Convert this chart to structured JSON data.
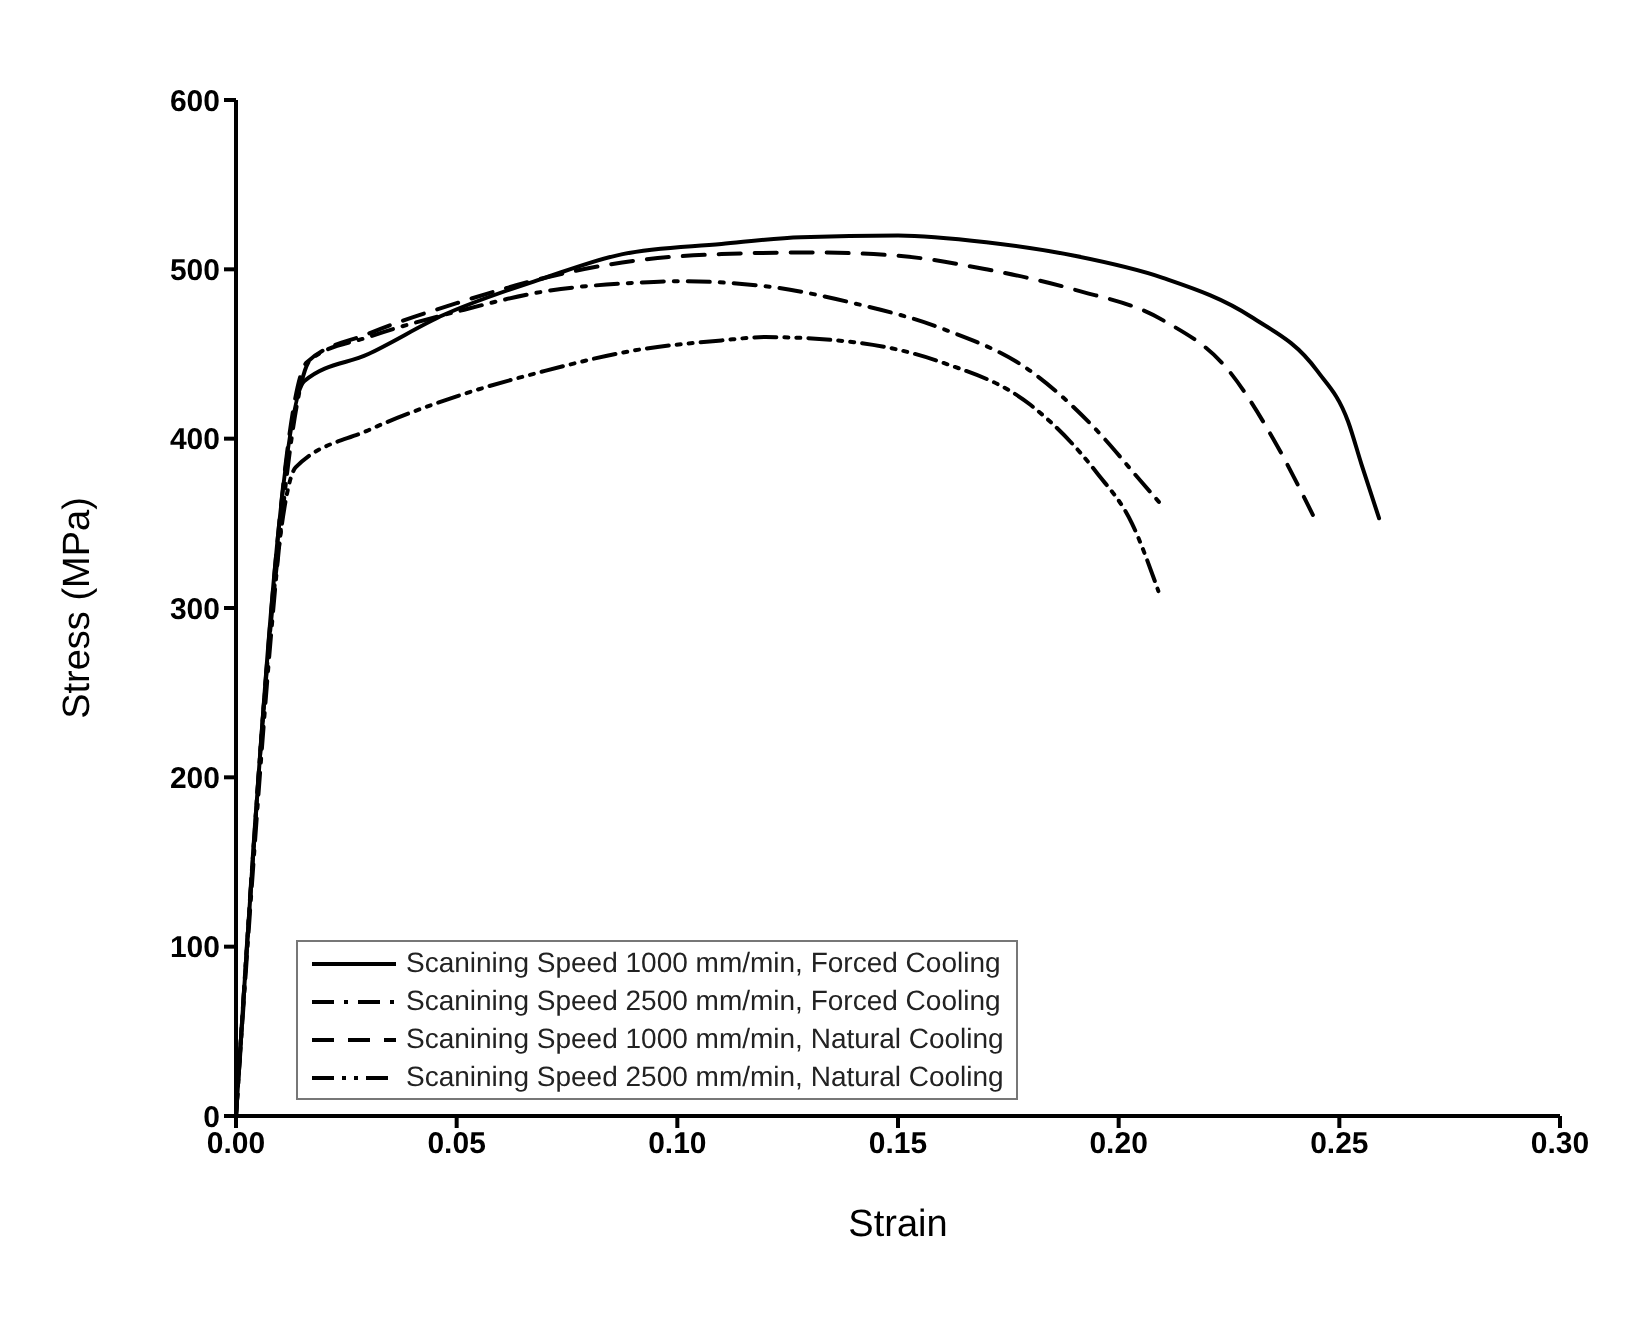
{
  "chart_data": {
    "type": "line",
    "xlabel": "Strain",
    "ylabel": "Stress (MPa)",
    "xlim": [
      0,
      0.3
    ],
    "ylim": [
      0,
      600
    ],
    "xticks": [
      {
        "value": 0,
        "label": "0.00"
      },
      {
        "value": 0.05,
        "label": "0.05"
      },
      {
        "value": 0.1,
        "label": "0.10"
      },
      {
        "value": 0.15,
        "label": "0.15"
      },
      {
        "value": 0.2,
        "label": "0.20"
      },
      {
        "value": 0.25,
        "label": "0.25"
      },
      {
        "value": 0.3,
        "label": "0.30"
      }
    ],
    "yticks": [
      0,
      100,
      200,
      300,
      400,
      500,
      600
    ],
    "grid": false,
    "legend": "bottom left",
    "marker": "none",
    "series": [
      {
        "name": "Scanining Speed 1000 mm/min, Forced Cooling",
        "color": "#000000",
        "line_style": "solid",
        "x": [
          0,
          0.0155,
          0.03,
          0.047,
          0.07,
          0.0876,
          0.11,
          0.128,
          0.15,
          0.17,
          0.19,
          0.21,
          0.23,
          0.245,
          0.252,
          0.255,
          0.259
        ],
        "values": [
          0,
          434,
          450,
          473,
          495,
          509,
          515,
          519,
          520,
          516,
          508,
          495,
          472,
          440,
          410,
          385,
          353
        ]
      },
      {
        "name": "Scanining Speed 2500 mm/min, Forced Cooling",
        "color": "#000000",
        "line_style": "dashdot",
        "x": [
          0,
          0.017,
          0.03,
          0.05,
          0.07,
          0.09,
          0.1,
          0.12,
          0.14,
          0.16,
          0.18,
          0.195,
          0.205,
          0.21
        ],
        "values": [
          0,
          447,
          460,
          475,
          487,
          492,
          493,
          490,
          480,
          465,
          440,
          405,
          375,
          360
        ]
      },
      {
        "name": "Scanining Speed 1000 mm/min, Natural Cooling",
        "color": "#000000",
        "line_style": "dashed",
        "x": [
          0,
          0.016,
          0.03,
          0.05,
          0.07,
          0.09,
          0.11,
          0.13,
          0.15,
          0.17,
          0.19,
          0.21,
          0.225,
          0.235,
          0.244
        ],
        "values": [
          0,
          445,
          462,
          480,
          495,
          505,
          509,
          510,
          508,
          500,
          488,
          470,
          440,
          400,
          355
        ]
      },
      {
        "name": "Scanining Speed 2500 mm/min, Natural Cooling",
        "color": "#000000",
        "line_style": "dashdotdot",
        "x": [
          0,
          0.0135,
          0.03,
          0.05,
          0.07,
          0.09,
          0.11,
          0.12,
          0.14,
          0.16,
          0.18,
          0.195,
          0.203,
          0.209
        ],
        "values": [
          0,
          383,
          405,
          425,
          440,
          452,
          458,
          460,
          457,
          445,
          420,
          380,
          350,
          310
        ]
      }
    ]
  }
}
